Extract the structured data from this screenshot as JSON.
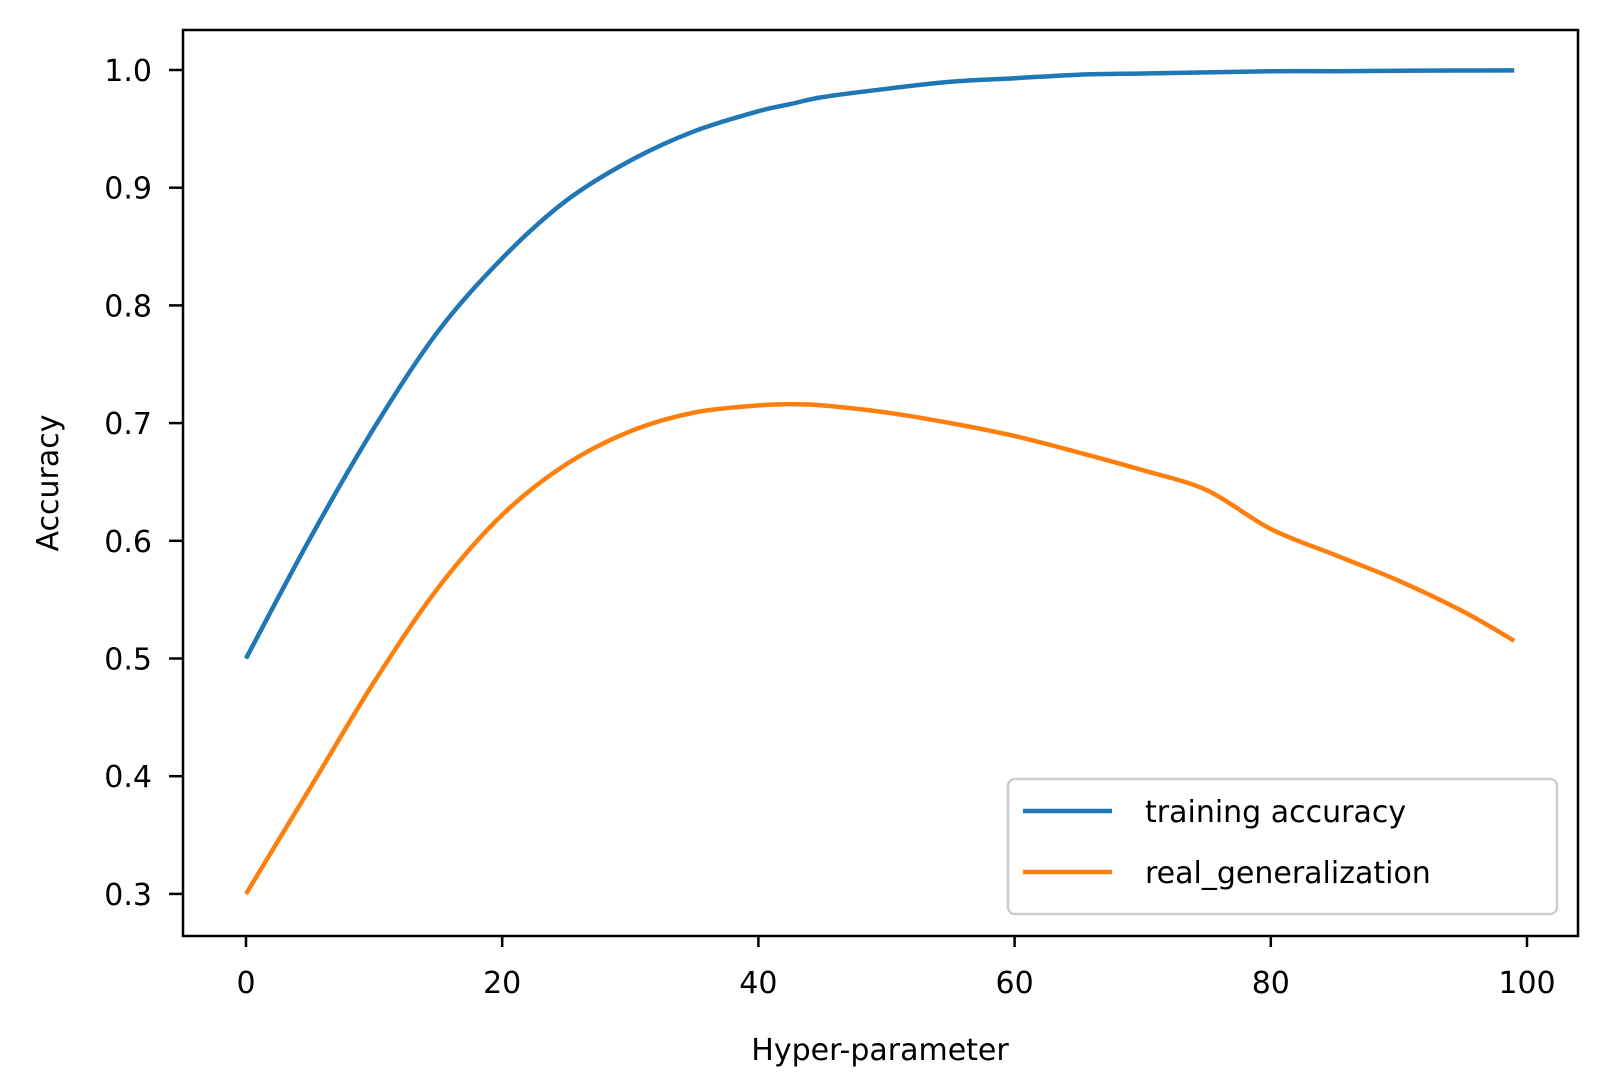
{
  "chart_data": {
    "type": "line",
    "title": "",
    "xlabel": "Hyper-parameter",
    "ylabel": "Accuracy",
    "xlim": [
      -5,
      104
    ],
    "ylim": [
      0.265,
      1.035
    ],
    "grid": false,
    "legend_position": "lower right",
    "x_ticks": [
      0,
      20,
      40,
      60,
      80,
      100
    ],
    "x_tick_labels": [
      "0",
      "20",
      "40",
      "60",
      "80",
      "100"
    ],
    "y_ticks": [
      0.3,
      0.4,
      0.5,
      0.6,
      0.7,
      0.8,
      0.9,
      1.0
    ],
    "y_tick_labels": [
      "0.3",
      "0.4",
      "0.5",
      "0.6",
      "0.7",
      "0.8",
      "0.9",
      "1.0"
    ],
    "x": [
      0,
      5,
      10,
      15,
      20,
      25,
      30,
      35,
      40,
      42.5,
      45,
      50,
      55,
      60,
      65,
      70,
      75,
      80,
      85,
      90,
      95,
      99
    ],
    "series": [
      {
        "name": "training accuracy",
        "color": "#1f77b4",
        "values": [
          0.5,
          0.602,
          0.696,
          0.778,
          0.84,
          0.889,
          0.923,
          0.948,
          0.965,
          0.971,
          0.977,
          0.984,
          0.99,
          0.993,
          0.996,
          0.997,
          0.998,
          0.999,
          0.999,
          0.9994,
          0.9996,
          0.9997
        ]
      },
      {
        "name": "real_generalization",
        "color": "#ff7f0e",
        "values": [
          0.3,
          0.39,
          0.48,
          0.56,
          0.622,
          0.665,
          0.693,
          0.709,
          0.715,
          0.716,
          0.715,
          0.709,
          0.7,
          0.689,
          0.675,
          0.66,
          0.643,
          0.61,
          0.588,
          0.566,
          0.54,
          0.515
        ]
      }
    ]
  }
}
